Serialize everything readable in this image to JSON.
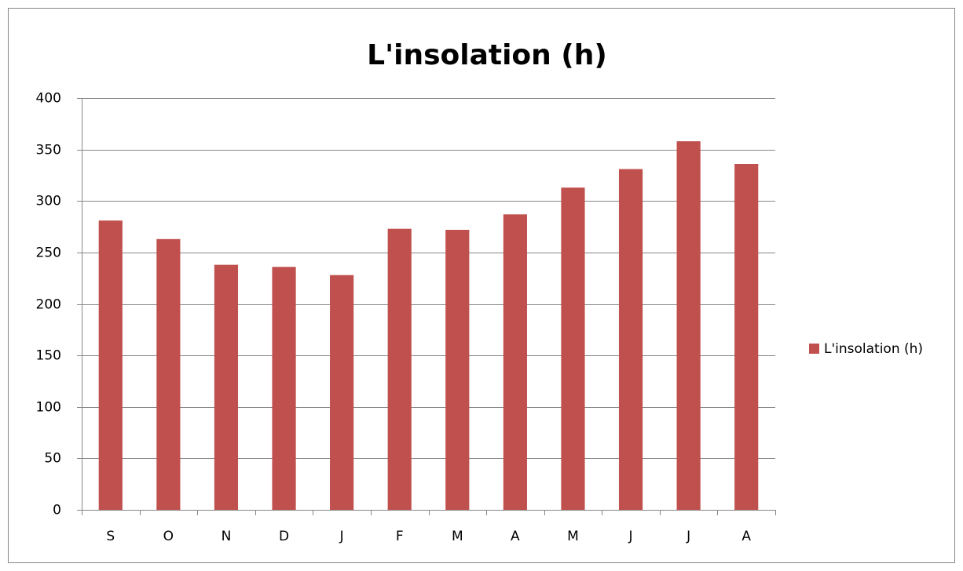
{
  "chart_data": {
    "type": "bar",
    "title": "L'insolation (h)",
    "categories": [
      "S",
      "O",
      "N",
      "D",
      "J",
      "F",
      "M",
      "A",
      "M",
      "J",
      "J",
      "A"
    ],
    "series": [
      {
        "name": "L'insolation (h)",
        "color": "#c0504d",
        "values": [
          281,
          263,
          238,
          236,
          228,
          273,
          272,
          287,
          313,
          331,
          358,
          336
        ]
      }
    ],
    "ylim": [
      0,
      400
    ],
    "yticks": [
      0,
      50,
      100,
      150,
      200,
      250,
      300,
      350,
      400
    ],
    "grid": true,
    "legend": "right"
  }
}
